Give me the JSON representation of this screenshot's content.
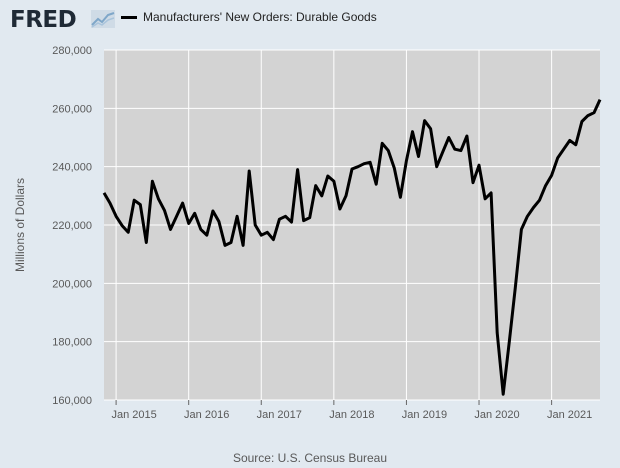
{
  "brand": {
    "logo_text": "FRED",
    "logo_icon": "trend-line-icon"
  },
  "legend": {
    "label": "Manufacturers' New Orders: Durable Goods",
    "color": "#000000"
  },
  "source": "Source: U.S. Census Bureau",
  "chart_data": {
    "type": "line",
    "title": "",
    "xlabel": "",
    "ylabel": "Millions of Dollars",
    "ylim": [
      160000,
      280000
    ],
    "yticks": [
      160000,
      180000,
      200000,
      220000,
      240000,
      260000,
      280000
    ],
    "ytick_labels": [
      "160,000",
      "180,000",
      "200,000",
      "220,000",
      "240,000",
      "260,000",
      "280,000"
    ],
    "xticks": [
      "2015-01",
      "2016-01",
      "2017-01",
      "2018-01",
      "2019-01",
      "2020-01",
      "2021-01"
    ],
    "xtick_labels": [
      "Jan 2015",
      "Jan 2016",
      "Jan 2017",
      "Jan 2018",
      "Jan 2019",
      "Jan 2020",
      "Jan 2021"
    ],
    "xlim": [
      "2014-11",
      "2021-08"
    ],
    "grid": true,
    "plot_background": "#d3d3d3",
    "series": [
      {
        "name": "Manufacturers' New Orders: Durable Goods",
        "color": "#000000",
        "x": [
          "2014-11",
          "2014-12",
          "2015-01",
          "2015-02",
          "2015-03",
          "2015-04",
          "2015-05",
          "2015-06",
          "2015-07",
          "2015-08",
          "2015-09",
          "2015-10",
          "2015-11",
          "2015-12",
          "2016-01",
          "2016-02",
          "2016-03",
          "2016-04",
          "2016-05",
          "2016-06",
          "2016-07",
          "2016-08",
          "2016-09",
          "2016-10",
          "2016-11",
          "2016-12",
          "2017-01",
          "2017-02",
          "2017-03",
          "2017-04",
          "2017-05",
          "2017-06",
          "2017-07",
          "2017-08",
          "2017-09",
          "2017-10",
          "2017-11",
          "2017-12",
          "2018-01",
          "2018-02",
          "2018-03",
          "2018-04",
          "2018-05",
          "2018-06",
          "2018-07",
          "2018-08",
          "2018-09",
          "2018-10",
          "2018-11",
          "2018-12",
          "2019-01",
          "2019-02",
          "2019-03",
          "2019-04",
          "2019-05",
          "2019-06",
          "2019-07",
          "2019-08",
          "2019-09",
          "2019-10",
          "2019-11",
          "2019-12",
          "2020-01",
          "2020-02",
          "2020-03",
          "2020-04",
          "2020-05",
          "2020-06",
          "2020-07",
          "2020-08",
          "2020-09",
          "2020-10",
          "2020-11",
          "2020-12",
          "2021-01",
          "2021-02",
          "2021-03",
          "2021-04",
          "2021-05",
          "2021-06",
          "2021-07",
          "2021-08"
        ],
        "values": [
          231000,
          227500,
          223000,
          219800,
          217500,
          228500,
          227000,
          214000,
          235000,
          229000,
          225000,
          218500,
          223000,
          227500,
          220500,
          224000,
          218500,
          216500,
          224800,
          221200,
          213000,
          214000,
          223000,
          213000,
          238500,
          220000,
          216500,
          217500,
          215000,
          222000,
          223000,
          221000,
          239000,
          221500,
          222500,
          233500,
          230000,
          236800,
          235000,
          225500,
          230000,
          239200,
          240000,
          241000,
          241500,
          234000,
          248000,
          245500,
          239500,
          229500,
          242000,
          252000,
          243500,
          255800,
          253000,
          240000,
          245000,
          250000,
          246000,
          245500,
          250500,
          234500,
          240500,
          229000,
          231000,
          183000,
          162000,
          180000,
          198500,
          218500,
          223000,
          226000,
          228500,
          233500,
          237000,
          243000,
          246000,
          249000,
          247500,
          255500,
          257500,
          258500
        ]
      }
    ],
    "extra_points": [
      {
        "x": "2021-09",
        "y": 263000
      }
    ]
  }
}
